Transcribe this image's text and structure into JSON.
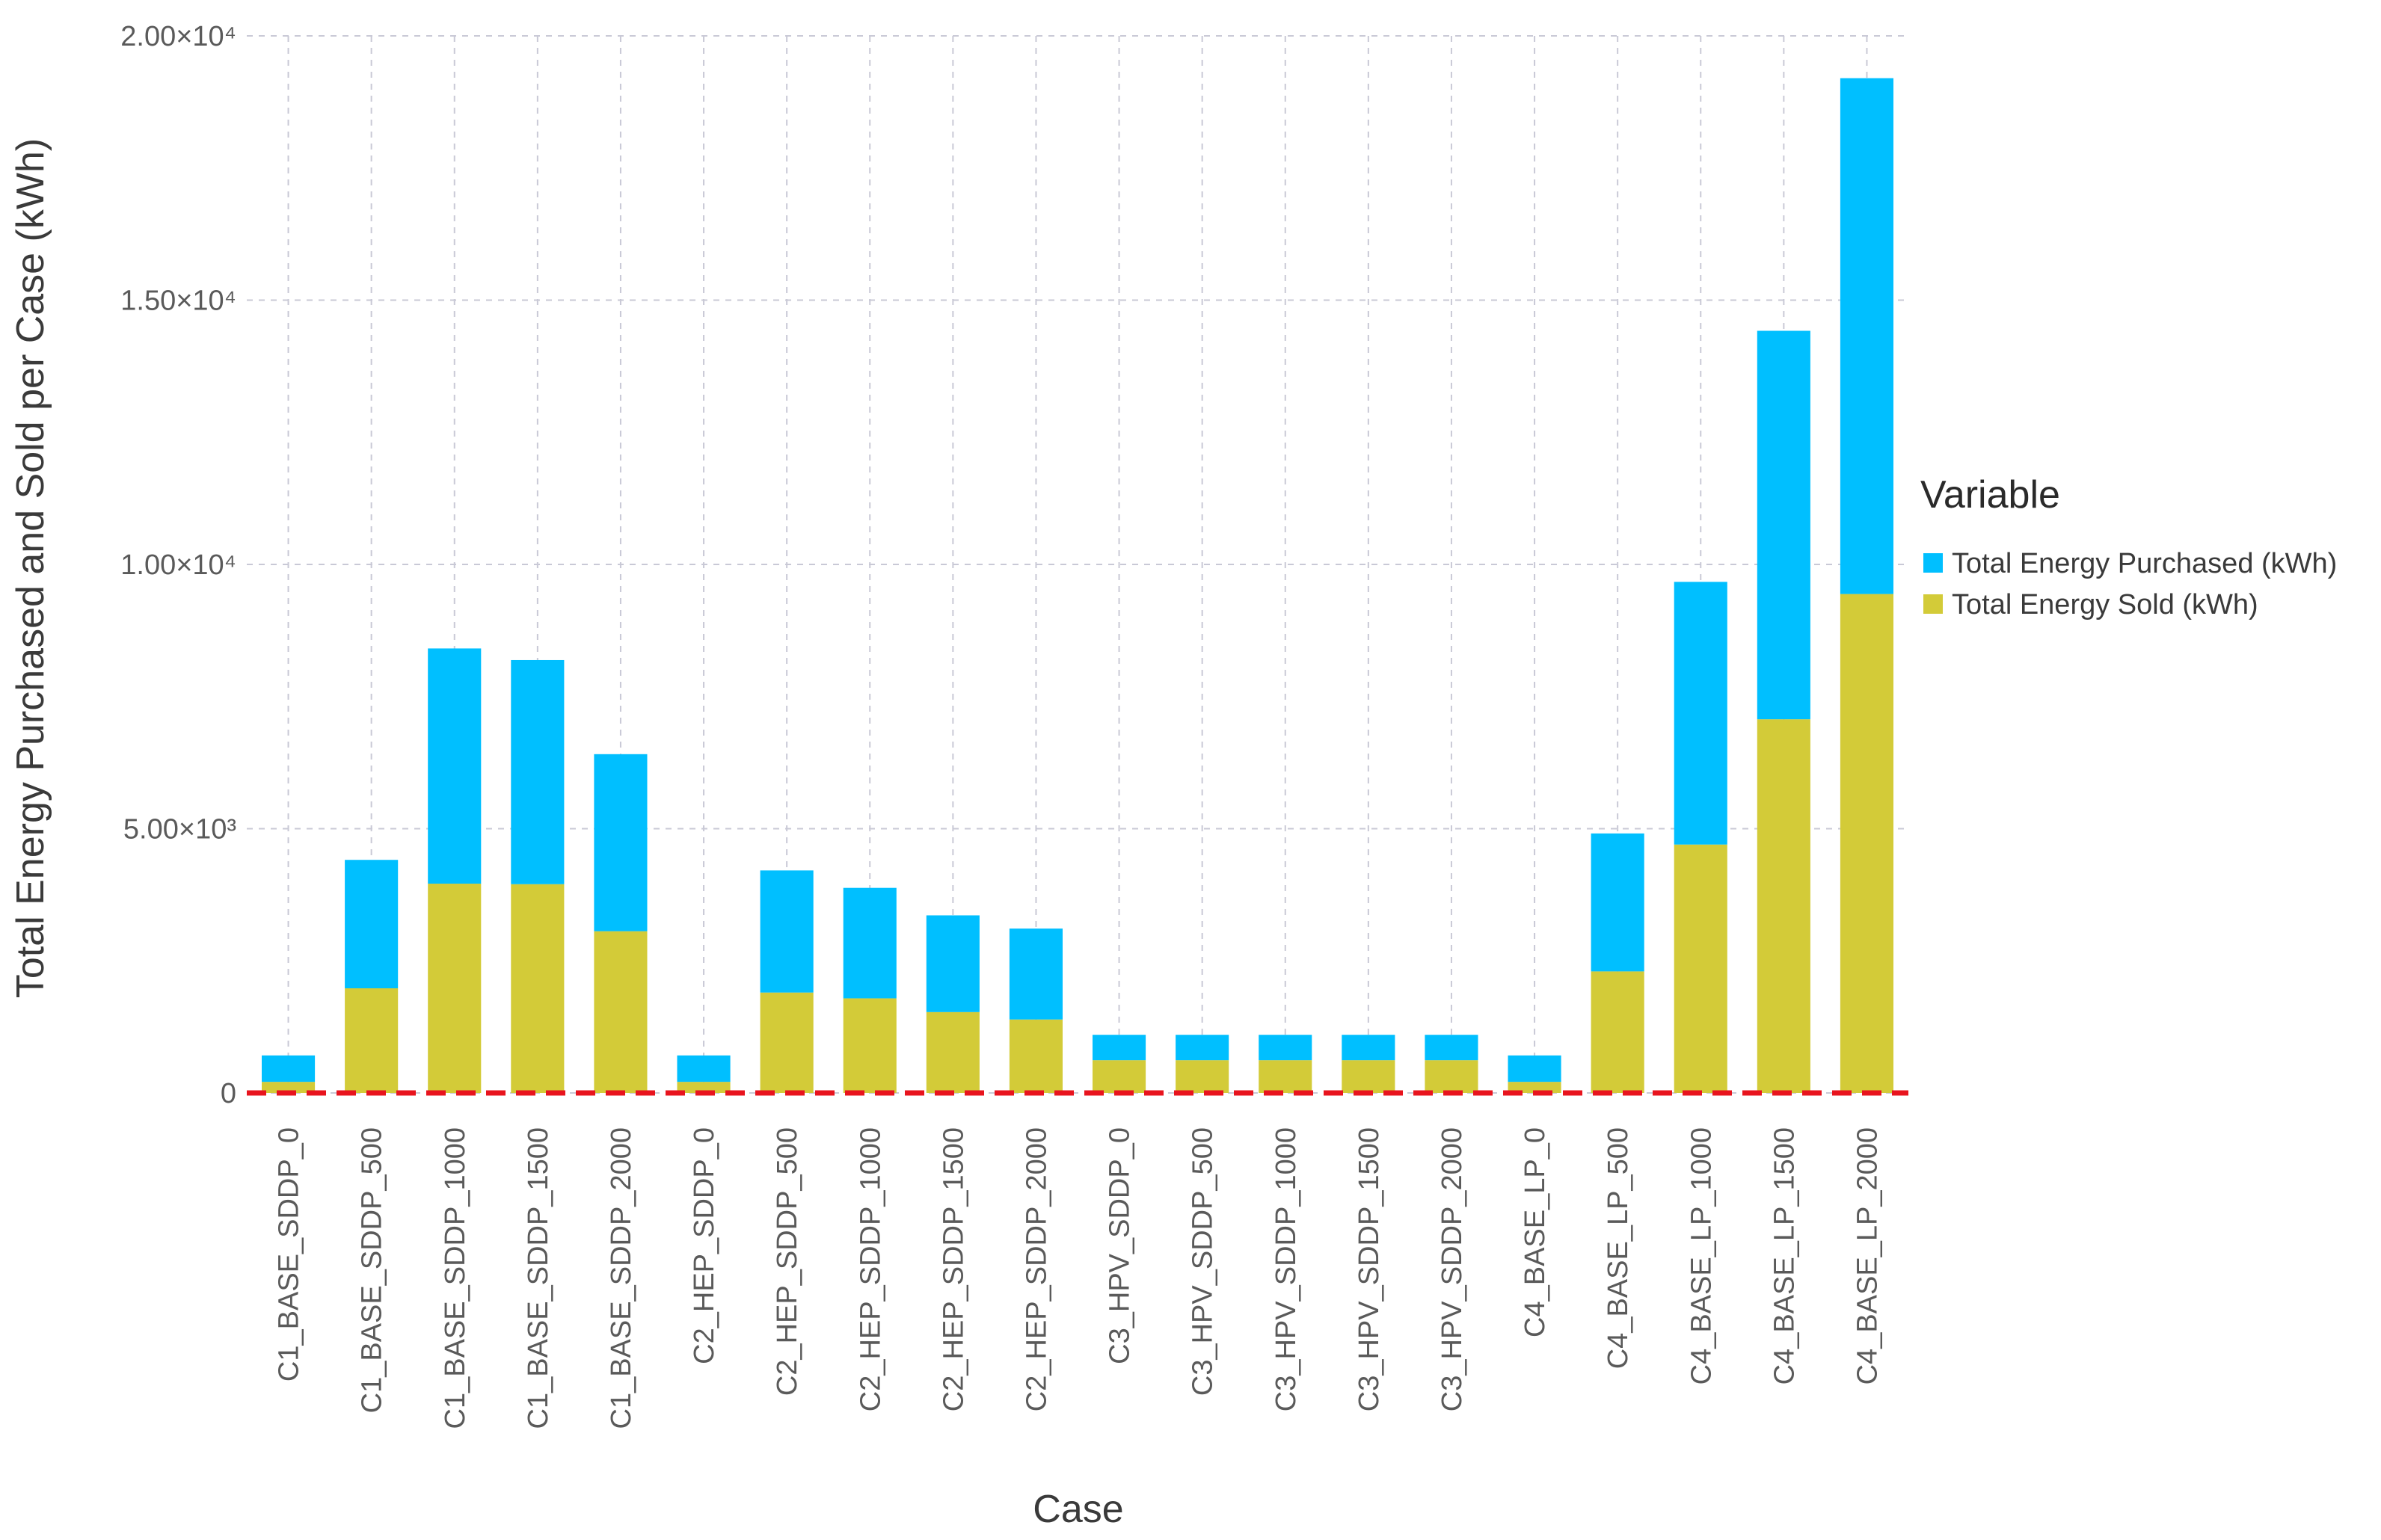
{
  "chart_data": {
    "type": "bar",
    "stacked": true,
    "xlabel": "Case",
    "ylabel": "Total Energy Purchased and Sold per Case (kWh)",
    "ylim": [
      0,
      20000
    ],
    "y_ticks": [
      0,
      5000,
      10000,
      15000,
      20000
    ],
    "y_tick_labels": [
      "0",
      "5.00×10³",
      "1.00×10⁴",
      "1.50×10⁴",
      "2.00×10⁴"
    ],
    "grid": true,
    "reference_line": {
      "y": 0,
      "color": "#e8141e",
      "style": "dashed"
    },
    "legend": {
      "title": "Variable",
      "placement": "right",
      "entries": [
        {
          "label": "Total Energy Purchased (kWh)",
          "color": "#00bfff"
        },
        {
          "label": "Total Energy Sold (kWh)",
          "color": "#d3cb38"
        }
      ]
    },
    "categories": [
      "C1_BASE_SDDP_0",
      "C1_BASE_SDDP_500",
      "C1_BASE_SDDP_1000",
      "C1_BASE_SDDP_1500",
      "C1_BASE_SDDP_2000",
      "C2_HEP_SDDP_0",
      "C2_HEP_SDDP_500",
      "C2_HEP_SDDP_1000",
      "C2_HEP_SDDP_1500",
      "C2_HEP_SDDP_2000",
      "C3_HPV_SDDP_0",
      "C3_HPV_SDDP_500",
      "C3_HPV_SDDP_1000",
      "C3_HPV_SDDP_1500",
      "C3_HPV_SDDP_2000",
      "C4_BASE_LP_0",
      "C4_BASE_LP_500",
      "C4_BASE_LP_1000",
      "C4_BASE_LP_1500",
      "C4_BASE_LP_2000"
    ],
    "series": [
      {
        "name": "Total Energy Sold (kWh)",
        "color": "#d3cb38",
        "values": [
          210,
          1980,
          3960,
          3950,
          3060,
          210,
          1900,
          1790,
          1530,
          1390,
          620,
          620,
          620,
          620,
          620,
          210,
          2300,
          4700,
          7070,
          9440
        ]
      },
      {
        "name": "Total Energy Purchased (kWh)",
        "color": "#00bfff",
        "values": [
          500,
          2430,
          4450,
          4240,
          3350,
          500,
          2310,
          2090,
          1830,
          1720,
          480,
          480,
          480,
          480,
          480,
          500,
          2610,
          4970,
          7350,
          9760
        ]
      }
    ]
  }
}
